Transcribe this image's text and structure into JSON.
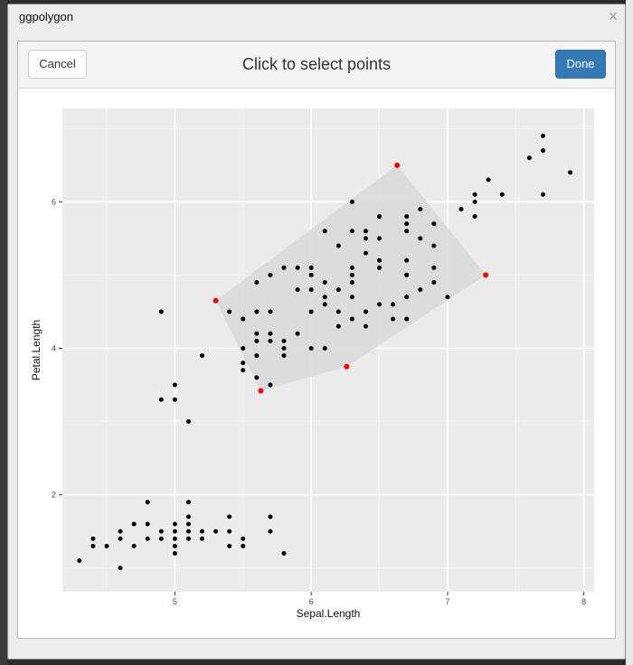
{
  "window": {
    "title": "ggpolygon",
    "close_glyph": "×"
  },
  "gadget": {
    "title": "Click to select points",
    "cancel_label": "Cancel",
    "done_label": "Done"
  },
  "chart_data": {
    "type": "scatter",
    "xlabel": "Sepal.Length",
    "ylabel": "Petal.Length",
    "xlim": [
      4.175,
      8.075
    ],
    "ylim": [
      0.675,
      7.275
    ],
    "xticks": [
      5,
      6,
      7,
      8
    ],
    "yticks": [
      2,
      4,
      6
    ],
    "tick_labels_x": [
      "5",
      "6",
      "7",
      "8"
    ],
    "tick_labels_y": [
      "2",
      "4",
      "6"
    ],
    "grid": true,
    "panel_background": "#ebebeb",
    "point_color": "#000000",
    "selection_color": "#ff0000",
    "polygon_fill": "#d9d9d9",
    "points": [
      [
        4.3,
        1.1
      ],
      [
        4.4,
        1.3
      ],
      [
        4.4,
        1.4
      ],
      [
        4.5,
        1.3
      ],
      [
        4.6,
        1.0
      ],
      [
        4.6,
        1.4
      ],
      [
        4.6,
        1.5
      ],
      [
        4.7,
        1.3
      ],
      [
        4.7,
        1.6
      ],
      [
        4.8,
        1.4
      ],
      [
        4.8,
        1.6
      ],
      [
        4.8,
        1.9
      ],
      [
        4.9,
        1.4
      ],
      [
        4.9,
        1.5
      ],
      [
        4.9,
        3.3
      ],
      [
        4.9,
        4.5
      ],
      [
        5.0,
        1.2
      ],
      [
        5.0,
        1.3
      ],
      [
        5.0,
        1.4
      ],
      [
        5.0,
        1.5
      ],
      [
        5.0,
        1.6
      ],
      [
        5.0,
        3.3
      ],
      [
        5.0,
        3.5
      ],
      [
        5.1,
        1.4
      ],
      [
        5.1,
        1.5
      ],
      [
        5.1,
        1.6
      ],
      [
        5.1,
        1.7
      ],
      [
        5.1,
        1.9
      ],
      [
        5.1,
        3.0
      ],
      [
        5.2,
        1.4
      ],
      [
        5.2,
        1.5
      ],
      [
        5.2,
        3.9
      ],
      [
        5.3,
        1.5
      ],
      [
        5.4,
        1.3
      ],
      [
        5.4,
        1.5
      ],
      [
        5.4,
        1.7
      ],
      [
        5.4,
        4.5
      ],
      [
        5.5,
        1.3
      ],
      [
        5.5,
        1.4
      ],
      [
        5.5,
        3.7
      ],
      [
        5.5,
        3.8
      ],
      [
        5.5,
        4.0
      ],
      [
        5.5,
        4.4
      ],
      [
        5.6,
        3.6
      ],
      [
        5.6,
        3.9
      ],
      [
        5.6,
        4.1
      ],
      [
        5.6,
        4.2
      ],
      [
        5.6,
        4.5
      ],
      [
        5.6,
        4.9
      ],
      [
        5.7,
        1.5
      ],
      [
        5.7,
        1.7
      ],
      [
        5.7,
        3.5
      ],
      [
        5.7,
        4.1
      ],
      [
        5.7,
        4.2
      ],
      [
        5.7,
        4.5
      ],
      [
        5.7,
        5.0
      ],
      [
        5.8,
        1.2
      ],
      [
        5.8,
        3.9
      ],
      [
        5.8,
        4.0
      ],
      [
        5.8,
        4.1
      ],
      [
        5.8,
        5.1
      ],
      [
        5.9,
        4.2
      ],
      [
        5.9,
        4.8
      ],
      [
        5.9,
        5.1
      ],
      [
        6.0,
        4.0
      ],
      [
        6.0,
        4.5
      ],
      [
        6.0,
        4.8
      ],
      [
        6.0,
        5.0
      ],
      [
        6.0,
        5.1
      ],
      [
        6.1,
        4.0
      ],
      [
        6.1,
        4.6
      ],
      [
        6.1,
        4.7
      ],
      [
        6.1,
        4.9
      ],
      [
        6.1,
        5.6
      ],
      [
        6.2,
        4.3
      ],
      [
        6.2,
        4.5
      ],
      [
        6.2,
        4.8
      ],
      [
        6.2,
        5.4
      ],
      [
        6.3,
        4.4
      ],
      [
        6.3,
        4.7
      ],
      [
        6.3,
        4.9
      ],
      [
        6.3,
        5.0
      ],
      [
        6.3,
        5.1
      ],
      [
        6.3,
        5.6
      ],
      [
        6.3,
        6.0
      ],
      [
        6.4,
        4.3
      ],
      [
        6.4,
        4.5
      ],
      [
        6.4,
        5.3
      ],
      [
        6.4,
        5.5
      ],
      [
        6.4,
        5.6
      ],
      [
        6.5,
        4.6
      ],
      [
        6.5,
        5.1
      ],
      [
        6.5,
        5.2
      ],
      [
        6.5,
        5.5
      ],
      [
        6.5,
        5.8
      ],
      [
        6.6,
        4.4
      ],
      [
        6.6,
        4.6
      ],
      [
        6.7,
        4.4
      ],
      [
        6.7,
        4.7
      ],
      [
        6.7,
        5.0
      ],
      [
        6.7,
        5.2
      ],
      [
        6.7,
        5.6
      ],
      [
        6.7,
        5.7
      ],
      [
        6.7,
        5.8
      ],
      [
        6.8,
        4.8
      ],
      [
        6.8,
        5.5
      ],
      [
        6.8,
        5.9
      ],
      [
        6.9,
        4.9
      ],
      [
        6.9,
        5.1
      ],
      [
        6.9,
        5.4
      ],
      [
        6.9,
        5.7
      ],
      [
        7.0,
        4.7
      ],
      [
        7.1,
        5.9
      ],
      [
        7.2,
        5.8
      ],
      [
        7.2,
        6.0
      ],
      [
        7.2,
        6.1
      ],
      [
        7.3,
        6.3
      ],
      [
        7.4,
        6.1
      ],
      [
        7.6,
        6.6
      ],
      [
        7.7,
        6.1
      ],
      [
        7.7,
        6.7
      ],
      [
        7.7,
        6.9
      ],
      [
        7.9,
        6.4
      ]
    ],
    "polygon_vertices": [
      [
        5.3,
        4.65
      ],
      [
        6.63,
        6.5
      ],
      [
        7.28,
        5.0
      ],
      [
        6.26,
        3.75
      ],
      [
        5.63,
        3.42
      ]
    ]
  }
}
